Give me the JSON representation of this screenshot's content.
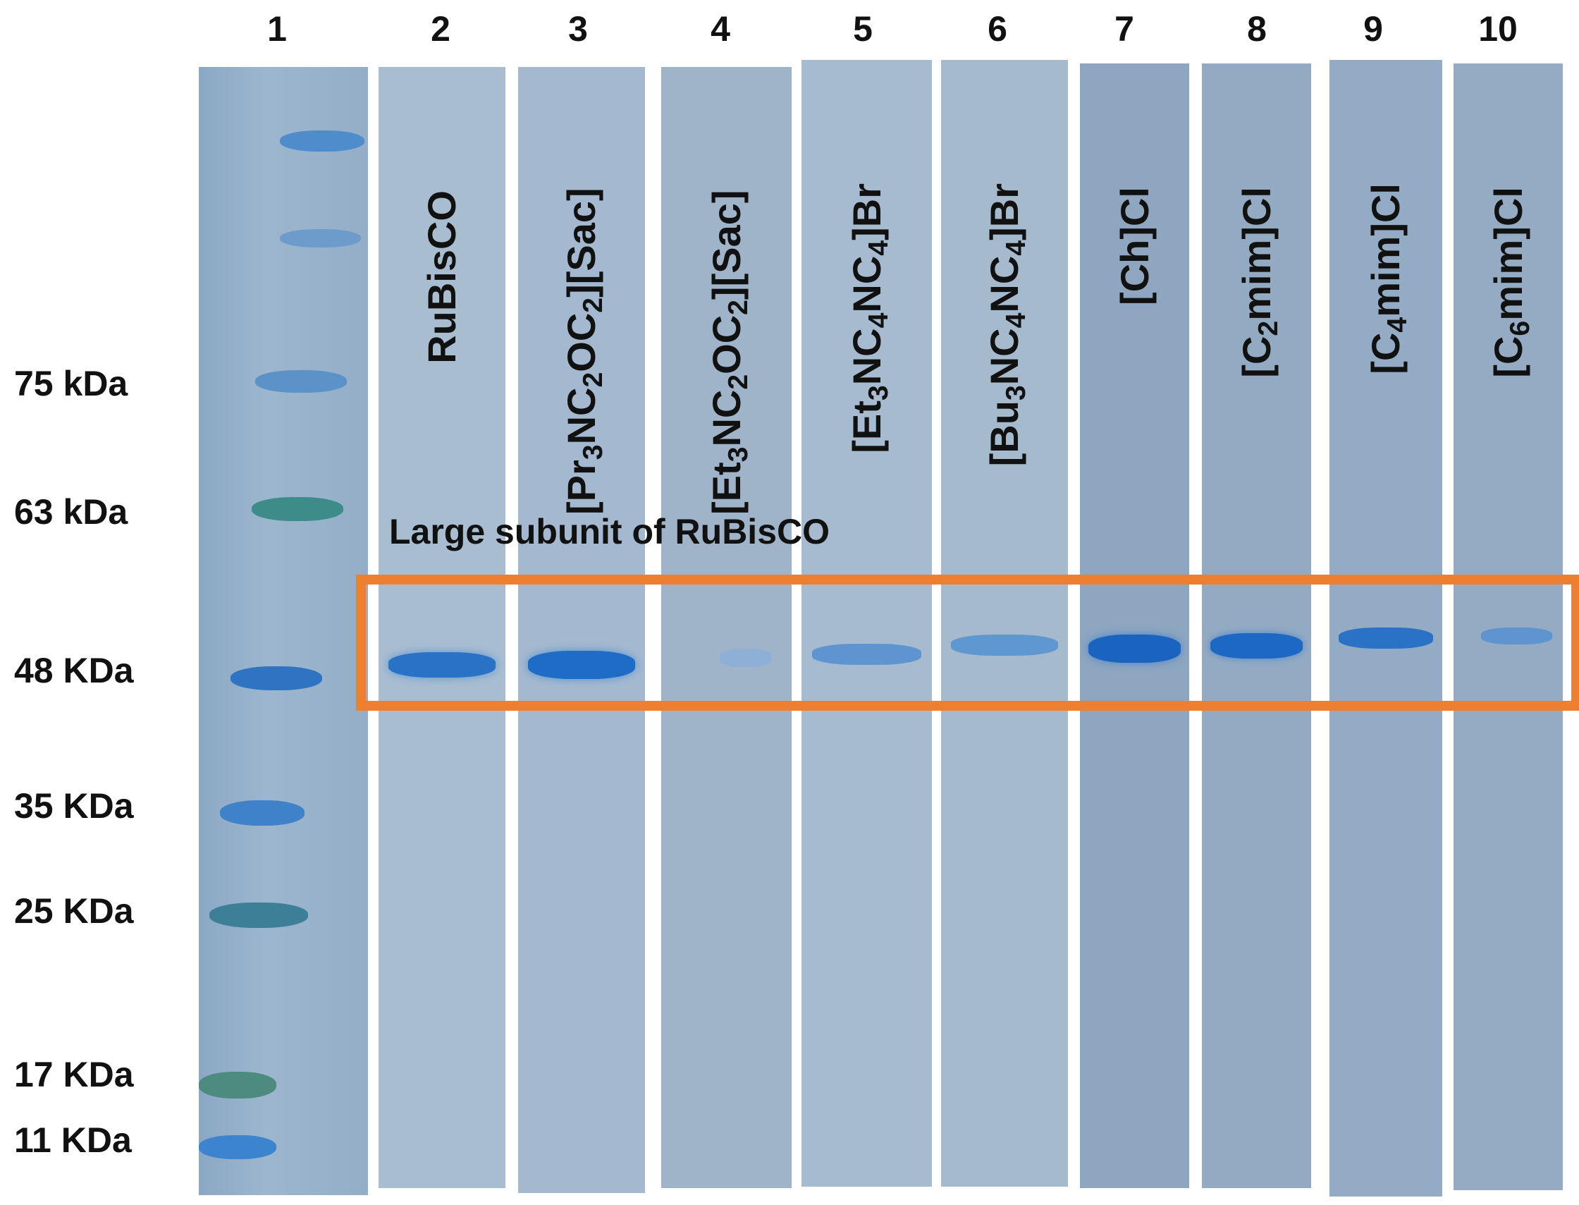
{
  "lane_numbers": [
    "1",
    "2",
    "3",
    "4",
    "5",
    "6",
    "7",
    "8",
    "9",
    "10"
  ],
  "markers": {
    "m75": "75 kDa",
    "m63": "63 kDa",
    "m48": "48 KDa",
    "m35": "35 KDa",
    "m25": "25 KDa",
    "m17": "17 KDa",
    "m11": "11 KDa"
  },
  "lane_labels": {
    "lane2": {
      "text": "RuBisCO"
    },
    "lane3": {
      "p1": "[Pr",
      "s1": "3",
      "p2": "NC",
      "s2": "2",
      "p3": "OC",
      "s3": "2",
      "p4": "][Sac]"
    },
    "lane4": {
      "p1": "[Et",
      "s1": "3",
      "p2": "NC",
      "s2": "2",
      "p3": "OC",
      "s3": "2",
      "p4": "][Sac]"
    },
    "lane5": {
      "p1": "[Et",
      "s1": "3",
      "p2": "NC",
      "s2": "4",
      "p3": "NC",
      "s3": "4",
      "p4": "]Br"
    },
    "lane6": {
      "p1": "[Bu",
      "s1": "3",
      "p2": "NC",
      "s2": "4",
      "p3": "NC",
      "s3": "4",
      "p4": "]Br"
    },
    "lane7": {
      "text": "[Ch]Cl"
    },
    "lane8": {
      "p1": "[C",
      "s1": "2",
      "p2": "mim]Cl"
    },
    "lane9": {
      "p1": "[C",
      "s1": "4",
      "p2": "mim]Cl"
    },
    "lane10": {
      "p1": "[C",
      "s1": "6",
      "p2": "mim]Cl"
    }
  },
  "band_caption": "Large subunit of RuBisCO",
  "colors": {
    "highlight_box": "#ee7f30",
    "gel_background": "#9fb2c6",
    "band": "#2a6fc0"
  }
}
